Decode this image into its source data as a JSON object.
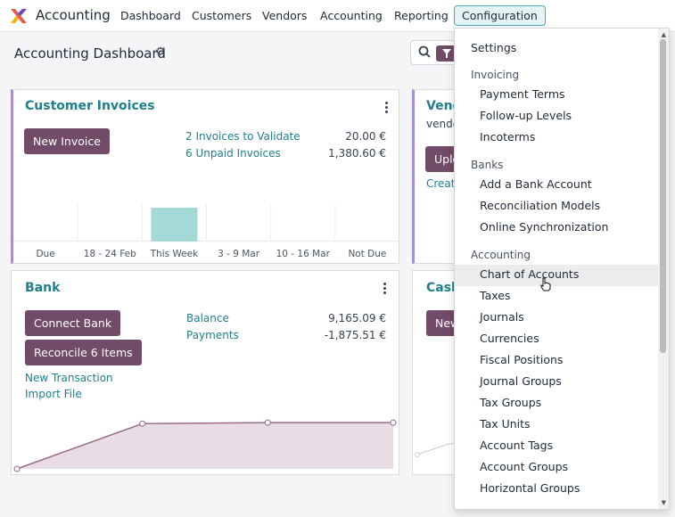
{
  "topnav": {
    "app_name": "Accounting",
    "items": [
      "Dashboard",
      "Customers",
      "Vendors",
      "Accounting",
      "Reporting",
      "Configuration"
    ],
    "active": "Configuration"
  },
  "control_panel": {
    "title": "Accounting Dashboard",
    "settings_icon": "gear-icon",
    "search_icon": "search-icon",
    "filter_icon": "filter-icon"
  },
  "customer_invoices": {
    "title": "Customer Invoices",
    "button": "New Invoice",
    "links": [
      {
        "label": "2 Invoices to Validate",
        "amount": "20.00 €"
      },
      {
        "label": "6 Unpaid Invoices",
        "amount": "1,380.60 €"
      }
    ],
    "chart_data": {
      "type": "bar",
      "categories": [
        "Due",
        "18 - 24 Feb",
        "This Week",
        "3 - 9 Mar",
        "10 - 16 Mar",
        "Not Due"
      ],
      "values": [
        0,
        0,
        1,
        0,
        0,
        0
      ],
      "bar_color": "#a3d9d6"
    }
  },
  "vendor_card": {
    "title": "Vend",
    "subtitle": "vendo",
    "button": "Uplo",
    "link": "Creat"
  },
  "bank": {
    "title": "Bank",
    "buttons": [
      "Connect Bank",
      "Reconcile 6 Items"
    ],
    "links": [
      "New Transaction",
      "Import File"
    ],
    "stats": [
      {
        "label": "Balance",
        "amount": "9,165.09 €"
      },
      {
        "label": "Payments",
        "amount": "-1,875.51 €"
      }
    ],
    "chart_data": {
      "type": "area",
      "x": [
        0,
        1,
        2,
        3
      ],
      "y": [
        -1,
        0.88,
        0.92,
        0.92
      ],
      "line_color": "#9a6b8d",
      "fill_color": "#e8dde5"
    }
  },
  "cash_card": {
    "title": "Cash",
    "button": "New"
  },
  "dropdown": {
    "settings": "Settings",
    "sections": [
      {
        "label": "Invoicing",
        "items": [
          "Payment Terms",
          "Follow-up Levels",
          "Incoterms"
        ]
      },
      {
        "label": "Banks",
        "items": [
          "Add a Bank Account",
          "Reconciliation Models",
          "Online Synchronization"
        ]
      },
      {
        "label": "Accounting",
        "items": [
          "Chart of Accounts",
          "Taxes",
          "Journals",
          "Currencies",
          "Fiscal Positions",
          "Journal Groups",
          "Tax Groups",
          "Tax Units",
          "Account Tags",
          "Account Groups",
          "Horizontal Groups"
        ]
      }
    ],
    "hovered": "Chart of Accounts"
  },
  "colors": {
    "primary": "#714b67",
    "link": "#1f7f8c",
    "accent_border": "#a98ed0"
  }
}
